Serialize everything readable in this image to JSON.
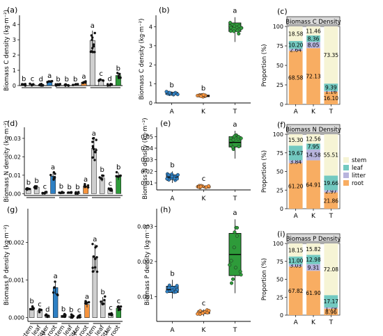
{
  "colors": {
    "A": "#2e80c4",
    "K": "#f7943d",
    "T": "#2e9b3a",
    "root": "#f8ad62",
    "litter": "#b7b4dd",
    "leaf": "#73c9c0",
    "stem": "#f6f4d5",
    "strip": "#d9d9d9"
  },
  "chart_data": [
    {
      "id": "a",
      "type": "bar",
      "panel_label": "(a)",
      "ylabel": "Biomass C density (kg·m⁻²)",
      "ylim": [
        0,
        4.6
      ],
      "yticks": [
        0,
        1,
        2,
        3,
        4
      ],
      "group_labels": [
        "A",
        "K",
        "T"
      ],
      "categories": [
        "stem",
        "leaf",
        "litter",
        "root"
      ],
      "series": [
        {
          "group": "A",
          "values": [
            0.05,
            0.07,
            0.04,
            0.26
          ],
          "letters": [
            "b",
            "c",
            "d",
            "a"
          ]
        },
        {
          "group": "K",
          "values": [
            0.04,
            0.03,
            0.03,
            0.22
          ],
          "letters": [
            "b",
            "b",
            "b",
            "a"
          ]
        },
        {
          "group": "T",
          "values": [
            2.95,
            0.38,
            0.05,
            0.66
          ],
          "letters": [
            "a",
            "c",
            "d",
            "b"
          ]
        }
      ]
    },
    {
      "id": "b",
      "type": "box",
      "panel_label": "(b)",
      "ylabel": "Biomass C density (kg·m⁻²)",
      "ylim": [
        0,
        4.6
      ],
      "yticks": [
        0,
        1,
        2,
        3,
        4
      ],
      "categories": [
        "A",
        "K",
        "T"
      ],
      "boxes": [
        {
          "min": 0.38,
          "q1": 0.45,
          "median": 0.5,
          "q3": 0.56,
          "max": 0.6,
          "letter": "b"
        },
        {
          "min": 0.3,
          "q1": 0.33,
          "median": 0.37,
          "q3": 0.41,
          "max": 0.43,
          "letter": "b"
        },
        {
          "min": 3.2,
          "q1": 3.75,
          "median": 4.0,
          "q3": 4.2,
          "max": 4.5,
          "letter": "a"
        }
      ]
    },
    {
      "id": "c",
      "type": "stacked_bar",
      "panel_label": "(c)",
      "title": "Biomass C Density",
      "ylabel": "Proportion (%)",
      "ylim": [
        0,
        100
      ],
      "yticks": [
        0,
        25,
        50,
        75,
        100
      ],
      "categories": [
        "A",
        "K",
        "T"
      ],
      "series_order": [
        "root",
        "litter",
        "leaf",
        "stem"
      ],
      "values": {
        "root": [
          68.58,
          72.13,
          16.1
        ],
        "litter": [
          2.64,
          8.05,
          1.16
        ],
        "leaf": [
          10.2,
          8.36,
          9.39
        ],
        "stem": [
          18.58,
          11.46,
          73.35
        ]
      }
    },
    {
      "id": "d",
      "type": "bar",
      "panel_label": "(d)",
      "ylabel": "Biomass N density (kg·m⁻²)",
      "ylim": [
        -0.001,
        0.036
      ],
      "yticks": [
        0,
        0.01,
        0.02,
        0.03
      ],
      "ytick_labels": [
        "0.00",
        "0.01",
        "0.02",
        "0.03"
      ],
      "group_labels": [
        "A",
        "K",
        "T"
      ],
      "categories": [
        "stem",
        "leaf",
        "litter",
        "root"
      ],
      "series": [
        {
          "group": "A",
          "values": [
            0.0028,
            0.0035,
            0.0006,
            0.0095
          ],
          "letters": [
            "b",
            "b",
            "c",
            "a"
          ]
        },
        {
          "group": "K",
          "values": [
            0.0008,
            0.0005,
            0.0004,
            0.0042
          ],
          "letters": [
            "b",
            "b",
            "b",
            "a"
          ]
        },
        {
          "group": "T",
          "values": [
            0.0245,
            0.0085,
            0.0022,
            0.0095
          ],
          "letters": [
            "a",
            "b",
            "c",
            "b"
          ]
        }
      ]
    },
    {
      "id": "e",
      "type": "box",
      "panel_label": "(e)",
      "ylabel": "Biomass  N density (kg·m⁻²)",
      "ylim": [
        0.004,
        0.058
      ],
      "yticks": [
        0.01,
        0.02,
        0.03,
        0.04,
        0.05
      ],
      "ytick_labels": [
        "0.01",
        "0.02",
        "0.03",
        "0.04",
        "0.05"
      ],
      "categories": [
        "A",
        "K",
        "T"
      ],
      "boxes": [
        {
          "min": 0.01,
          "q1": 0.013,
          "median": 0.015,
          "q3": 0.017,
          "max": 0.02,
          "letter": "b"
        },
        {
          "min": 0.0055,
          "q1": 0.0063,
          "median": 0.0068,
          "q3": 0.0073,
          "max": 0.0082,
          "letter": "c"
        },
        {
          "min": 0.031,
          "q1": 0.041,
          "median": 0.045,
          "q3": 0.05,
          "max": 0.055,
          "letter": "a"
        }
      ]
    },
    {
      "id": "f",
      "type": "stacked_bar",
      "panel_label": "(f)",
      "title": "Biomass N Density",
      "ylabel": "Proportion (%)",
      "ylim": [
        0,
        100
      ],
      "yticks": [
        0,
        25,
        50,
        75,
        100
      ],
      "categories": [
        "A",
        "K",
        "T"
      ],
      "series_order": [
        "root",
        "litter",
        "leaf",
        "stem"
      ],
      "values": {
        "root": [
          61.2,
          64.91,
          21.86
        ],
        "litter": [
          3.84,
          14.58,
          2.97
        ],
        "leaf": [
          19.67,
          7.95,
          19.66
        ],
        "stem": [
          15.3,
          12.56,
          55.51
        ]
      }
    },
    {
      "id": "g",
      "type": "bar",
      "panel_label": "(g)",
      "ylabel": "Biomass P density (kg·m⁻²)",
      "ylim": [
        -0.0001,
        0.0029
      ],
      "yticks": [
        0,
        0.001,
        0.002
      ],
      "ytick_labels": [
        "0.000",
        "0.001",
        "0.002"
      ],
      "group_labels": [
        "A",
        "K",
        "T"
      ],
      "categories": [
        "stem",
        "leaf",
        "litter",
        "root"
      ],
      "series": [
        {
          "group": "A",
          "values": [
            0.00025,
            0.00018,
            5e-05,
            0.0008
          ],
          "letters": [
            "b",
            "c",
            "d",
            "a"
          ]
        },
        {
          "group": "K",
          "values": [
            6e-05,
            4e-05,
            3e-05,
            0.00035
          ],
          "letters": [
            "b",
            "b",
            "c",
            "a"
          ]
        },
        {
          "group": "T",
          "values": [
            0.0016,
            0.00045,
            0.0001,
            0.00025
          ],
          "letters": [
            "a",
            "b",
            "c",
            "c"
          ]
        }
      ]
    },
    {
      "id": "h",
      "type": "box",
      "panel_label": "(h)",
      "ylabel": "Biomass P density (kg·m⁻²)",
      "ylim": [
        0.0003,
        0.0035
      ],
      "yticks": [
        0.001,
        0.002,
        0.003
      ],
      "ytick_labels": [
        "0.001",
        "0.002",
        "0.003"
      ],
      "categories": [
        "A",
        "K",
        "T"
      ],
      "boxes": [
        {
          "min": 0.00095,
          "q1": 0.00112,
          "median": 0.0012,
          "q3": 0.0013,
          "max": 0.00148,
          "letter": "b"
        },
        {
          "min": 0.00045,
          "q1": 0.00052,
          "median": 0.00055,
          "q3": 0.0006,
          "max": 0.00064,
          "letter": "c"
        },
        {
          "min": 0.0011,
          "q1": 0.0016,
          "median": 0.0022,
          "q3": 0.0028,
          "max": 0.0032,
          "letter": "a"
        }
      ]
    },
    {
      "id": "i",
      "type": "stacked_bar",
      "panel_label": "(i)",
      "title": "Biomass P Density",
      "ylabel": "Proportion (%)",
      "ylim": [
        0,
        100
      ],
      "yticks": [
        0,
        25,
        50,
        75,
        100
      ],
      "categories": [
        "A",
        "K",
        "T"
      ],
      "series_order": [
        "root",
        "litter",
        "leaf",
        "stem"
      ],
      "values": {
        "root": [
          67.82,
          61.9,
          8.96
        ],
        "litter": [
          3.03,
          9.31,
          1.79
        ],
        "leaf": [
          11.0,
          12.98,
          17.17
        ],
        "stem": [
          18.15,
          15.82,
          72.08
        ]
      }
    }
  ],
  "legend": {
    "items": [
      "stem",
      "leaf",
      "litter",
      "root"
    ]
  }
}
